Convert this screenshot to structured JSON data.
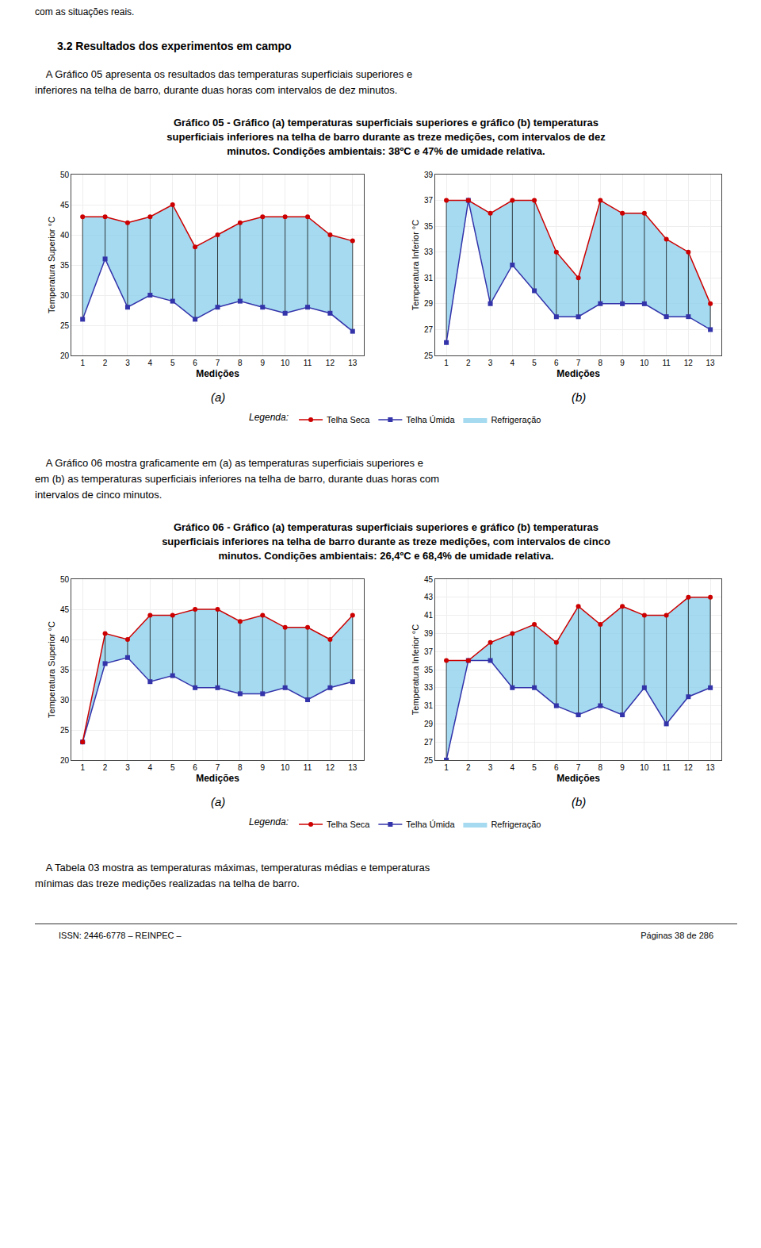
{
  "annotations": [
    "com as situações reais.",
    "3.2 Resultados dos experimentos em campo",
    "    A Gráfico 05 apresenta os resultados das temperaturas superficiais superiores e",
    "inferiores na telha de barro, durante duas horas com intervalos de dez minutos.",
    "Gráfico 05 - Gráfico (a) temperaturas superficiais superiores e gráfico (b) temperaturas",
    "superficiais inferiores na telha de barro durante as treze medições, com intervalos de dez",
    "minutos. Condições ambientais: 38ºC e 47% de umidade relativa.",
    "Legenda:",
    "    A Gráfico 06 mostra graficamente em (a) as temperaturas superficiais superiores e",
    "em (b) as temperaturas superficiais inferiores na telha de barro, durante duas horas com",
    "intervalos de cinco minutos.",
    "Gráfico 06 - Gráfico (a) temperaturas superficiais superiores e gráfico (b) temperaturas",
    "superficiais inferiores na telha de barro durante as treze medições, com intervalos de cinco",
    "minutos. Condições ambientais: 26,4ºC e 68,4% de umidade relativa.",
    "Legenda:",
    "    A Tabela 03 mostra as temperaturas máximas, temperaturas médias e temperaturas",
    "mínimas das treze medições realizadas na telha de barro.",
    "ISSN: 2446-6778  –  REINPEC  –",
    "Páginas 38 de 286"
  ],
  "chart_data": [
    {
      "type": "line",
      "title": "(a)",
      "xlabel": "Medições",
      "ylabel": "Temperatura Superior °C",
      "x": [
        1,
        2,
        3,
        4,
        5,
        6,
        7,
        8,
        9,
        10,
        11,
        12,
        13
      ],
      "xlim": [
        0.5,
        13.5
      ],
      "xticks": [
        1,
        2,
        3,
        4,
        5,
        6,
        7,
        8,
        9,
        10,
        11,
        12,
        13
      ],
      "ylim": [
        20,
        50
      ],
      "yticks": [
        20,
        25,
        30,
        35,
        40,
        45,
        50
      ],
      "grid": true,
      "legend": "bottom",
      "series": [
        {
          "name": "Telha Seca",
          "color": "#cc0000",
          "marker": "circle",
          "values": [
            43,
            43,
            42,
            43,
            45,
            38,
            40,
            42,
            43,
            43,
            43,
            40,
            39
          ]
        },
        {
          "name": "Telha Úmida",
          "color": "#3333aa",
          "marker": "square",
          "values": [
            26,
            36,
            28,
            30,
            29,
            26,
            28,
            29,
            28,
            27,
            28,
            27,
            24
          ]
        },
        {
          "name": "Refrigeração",
          "type": "area",
          "color": "#87ceeb"
        }
      ]
    },
    {
      "type": "line",
      "title": "(b)",
      "xlabel": "Medições",
      "ylabel": "Temperatura Inferior °C",
      "x": [
        1,
        2,
        3,
        4,
        5,
        6,
        7,
        8,
        9,
        10,
        11,
        12,
        13
      ],
      "xlim": [
        0.5,
        13.5
      ],
      "xticks": [
        1,
        2,
        3,
        4,
        5,
        6,
        7,
        8,
        9,
        10,
        11,
        12,
        13
      ],
      "ylim": [
        25,
        39
      ],
      "yticks": [
        25,
        27,
        29,
        31,
        33,
        35,
        37,
        39
      ],
      "grid": true,
      "legend": "bottom",
      "series": [
        {
          "name": "Telha Seca",
          "color": "#cc0000",
          "marker": "circle",
          "values": [
            37,
            37,
            36,
            37,
            37,
            33,
            31,
            37,
            36,
            36,
            34,
            33,
            29
          ]
        },
        {
          "name": "Telha Úmida",
          "color": "#3333aa",
          "marker": "square",
          "values": [
            26,
            37,
            29,
            32,
            30,
            28,
            28,
            29,
            29,
            29,
            28,
            28,
            27
          ]
        },
        {
          "name": "Refrigeração",
          "type": "area",
          "color": "#87ceeb"
        }
      ]
    },
    {
      "type": "line",
      "title": "(a)",
      "xlabel": "Medições",
      "ylabel": "Temperatura Superior °C",
      "x": [
        1,
        2,
        3,
        4,
        5,
        6,
        7,
        8,
        9,
        10,
        11,
        12,
        13
      ],
      "xlim": [
        0.5,
        13.5
      ],
      "xticks": [
        1,
        2,
        3,
        4,
        5,
        6,
        7,
        8,
        9,
        10,
        11,
        12,
        13
      ],
      "ylim": [
        20,
        50
      ],
      "yticks": [
        20,
        25,
        30,
        35,
        40,
        45,
        50
      ],
      "grid": true,
      "legend": "bottom",
      "series": [
        {
          "name": "Telha Seca",
          "color": "#cc0000",
          "marker": "circle",
          "values": [
            23,
            41,
            40,
            44,
            44,
            45,
            45,
            43,
            44,
            42,
            42,
            40,
            44
          ]
        },
        {
          "name": "Telha Úmida",
          "color": "#3333aa",
          "marker": "square",
          "values": [
            23,
            36,
            37,
            33,
            34,
            32,
            32,
            31,
            31,
            32,
            30,
            32,
            33
          ]
        },
        {
          "name": "Refrigeração",
          "type": "area",
          "color": "#87ceeb"
        }
      ]
    },
    {
      "type": "line",
      "title": "(b)",
      "xlabel": "Medições",
      "ylabel": "Temperatura Inferior °C",
      "x": [
        1,
        2,
        3,
        4,
        5,
        6,
        7,
        8,
        9,
        10,
        11,
        12,
        13
      ],
      "xlim": [
        0.5,
        13.5
      ],
      "xticks": [
        1,
        2,
        3,
        4,
        5,
        6,
        7,
        8,
        9,
        10,
        11,
        12,
        13
      ],
      "ylim": [
        25,
        45
      ],
      "yticks": [
        25,
        27,
        29,
        31,
        33,
        35,
        37,
        39,
        41,
        43,
        45
      ],
      "grid": true,
      "legend": "bottom",
      "series": [
        {
          "name": "Telha Seca",
          "color": "#cc0000",
          "marker": "circle",
          "values": [
            36,
            36,
            38,
            39,
            40,
            38,
            42,
            40,
            42,
            41,
            41,
            43,
            43
          ]
        },
        {
          "name": "Telha Úmida",
          "color": "#3333aa",
          "marker": "square",
          "values": [
            25,
            36,
            36,
            33,
            33,
            31,
            30,
            31,
            30,
            33,
            29,
            32,
            33
          ]
        },
        {
          "name": "Refrigeração",
          "type": "area",
          "color": "#87ceeb"
        }
      ]
    }
  ]
}
